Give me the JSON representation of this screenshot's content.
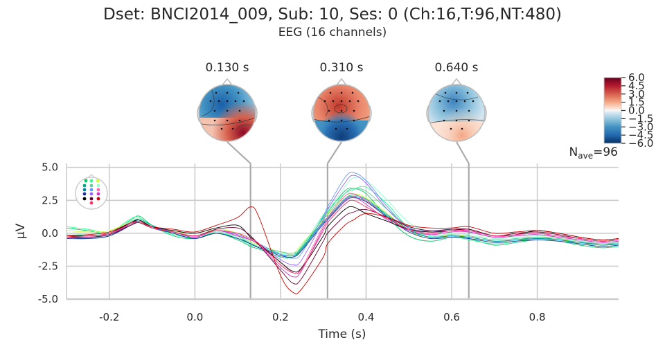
{
  "figure": {
    "title": "Dset: BNCI2014_009, Sub: 10, Ses: 0 (Ch:16,T:96,NT:480)",
    "subtitle": "EEG (16 channels)"
  },
  "colors": {
    "background": "#ffffff",
    "grid": "#cccccc",
    "connector": "#aaaaaa",
    "text": "#262626"
  },
  "chart_data": {
    "type": "line",
    "xlabel": "Time (s)",
    "ylabel": "µV",
    "xlim": [
      -0.3,
      0.99
    ],
    "ylim": [
      -5.0,
      5.3
    ],
    "xticks": [
      "-0.2",
      "0.0",
      "0.2",
      "0.4",
      "0.6",
      "0.8"
    ],
    "xtick_values": [
      -0.2,
      0.0,
      0.2,
      0.4,
      0.6,
      0.8
    ],
    "yticks": [
      "-5.0",
      "-2.5",
      "0.0",
      "2.5",
      "5.0"
    ],
    "ytick_values": [
      -5.0,
      -2.5,
      0.0,
      2.5,
      5.0
    ],
    "grid": true,
    "annotation": {
      "base": "N",
      "sub": "ave",
      "suffix": "=96"
    },
    "topomap_times": [
      0.13,
      0.31,
      0.64
    ],
    "topomap_labels": [
      "0.130 s",
      "0.310 s",
      "0.640 s"
    ],
    "colorbar": {
      "ticks": [
        "6.0",
        "4.5",
        "3.0",
        "1.5",
        "0.0",
        "−1.5",
        "−3.0",
        "−4.5",
        "−6.0"
      ],
      "tick_values": [
        6.0,
        4.5,
        3.0,
        1.5,
        0.0,
        -1.5,
        -3.0,
        -4.5,
        -6.0
      ],
      "range": [
        -6.0,
        6.0
      ],
      "colormap": "RdBu_r"
    },
    "channel_colors": [
      "#00cc66",
      "#33ff99",
      "#ccff33",
      "#00aa88",
      "#66cc99",
      "#99ffcc",
      "#0088aa",
      "#6699ff",
      "#ff66aa",
      "#223399",
      "#9966ff",
      "#cc33cc",
      "#000000",
      "#660033",
      "#cc0000",
      "#ff3366"
    ],
    "x": [
      -0.3,
      -0.25,
      -0.2,
      -0.15,
      -0.13,
      -0.1,
      -0.05,
      0.0,
      0.05,
      0.1,
      0.13,
      0.15,
      0.2,
      0.23,
      0.25,
      0.3,
      0.31,
      0.35,
      0.37,
      0.4,
      0.45,
      0.5,
      0.55,
      0.6,
      0.64,
      0.7,
      0.75,
      0.8,
      0.85,
      0.9,
      0.95,
      0.99
    ],
    "series": [
      {
        "color": "#00cc66",
        "values": [
          0.4,
          0.2,
          0.0,
          1.0,
          1.3,
          0.6,
          -0.2,
          -0.4,
          0.0,
          -0.5,
          -1.0,
          -1.2,
          -1.8,
          -1.8,
          -1.2,
          1.2,
          1.6,
          3.2,
          3.4,
          3.0,
          1.2,
          -0.2,
          -0.6,
          -0.3,
          -0.4,
          -0.9,
          -0.7,
          -0.5,
          -0.6,
          -0.9,
          -1.1,
          -1.0
        ]
      },
      {
        "color": "#33ff99",
        "values": [
          0.5,
          0.3,
          0.1,
          1.1,
          1.2,
          0.5,
          -0.1,
          -0.3,
          0.1,
          -0.4,
          -0.9,
          -1.0,
          -1.6,
          -1.7,
          -1.0,
          1.4,
          1.8,
          3.0,
          3.3,
          3.5,
          2.2,
          0.4,
          -0.2,
          -0.2,
          -0.5,
          -0.8,
          -0.6,
          -0.4,
          -0.5,
          -0.8,
          -1.0,
          -0.9
        ]
      },
      {
        "color": "#ccff33",
        "values": [
          0.2,
          0.1,
          0.2,
          0.9,
          1.0,
          0.4,
          0.2,
          -0.2,
          0.3,
          0.0,
          -0.6,
          -0.9,
          -1.4,
          -1.5,
          -0.8,
          1.0,
          1.5,
          2.8,
          3.0,
          2.7,
          1.5,
          0.2,
          -0.4,
          -0.1,
          -0.3,
          -0.6,
          -0.5,
          -0.3,
          -0.4,
          -0.7,
          -0.9,
          -0.8
        ]
      },
      {
        "color": "#00aa88",
        "values": [
          -0.2,
          -0.3,
          -0.1,
          0.8,
          1.1,
          0.6,
          0.0,
          -0.4,
          0.1,
          -0.3,
          -0.8,
          -1.1,
          -1.5,
          -1.6,
          -1.1,
          0.9,
          1.2,
          2.6,
          2.9,
          2.6,
          1.4,
          0.3,
          -0.3,
          -0.2,
          -0.3,
          -0.6,
          -0.5,
          -0.3,
          -0.5,
          -0.7,
          -0.8,
          -0.8
        ]
      },
      {
        "color": "#66cc99",
        "values": [
          -0.1,
          -0.2,
          0.0,
          0.9,
          1.0,
          0.5,
          0.1,
          -0.3,
          0.2,
          -0.2,
          -0.7,
          -1.0,
          -1.4,
          -1.5,
          -1.0,
          1.1,
          1.4,
          3.0,
          3.4,
          3.2,
          1.8,
          0.5,
          -0.1,
          -0.1,
          -0.2,
          -0.5,
          -0.4,
          -0.3,
          -0.4,
          -0.6,
          -0.8,
          -0.7
        ]
      },
      {
        "color": "#99ffcc",
        "values": [
          0.0,
          -0.1,
          0.1,
          0.9,
          1.1,
          0.5,
          0.0,
          -0.3,
          0.1,
          -0.3,
          -0.7,
          -1.0,
          -1.5,
          -1.6,
          -0.9,
          1.3,
          1.7,
          3.5,
          4.2,
          4.0,
          2.5,
          0.8,
          0.1,
          0.0,
          -0.1,
          -0.4,
          -0.3,
          -0.2,
          -0.3,
          -0.5,
          -0.7,
          -0.6
        ]
      },
      {
        "color": "#0088aa",
        "values": [
          -0.3,
          -0.4,
          -0.2,
          0.7,
          1.0,
          0.5,
          0.0,
          -0.4,
          0.0,
          -0.4,
          -0.8,
          -1.1,
          -1.6,
          -1.7,
          -1.2,
          0.8,
          1.1,
          2.5,
          2.8,
          2.5,
          1.3,
          0.2,
          -0.3,
          -0.2,
          -0.3,
          -0.6,
          -0.5,
          -0.4,
          -0.5,
          -0.7,
          -0.9,
          -0.8
        ]
      },
      {
        "color": "#6699ff",
        "values": [
          -0.2,
          -0.3,
          -0.1,
          0.8,
          1.0,
          0.5,
          0.1,
          -0.2,
          0.2,
          -0.1,
          -0.5,
          -0.8,
          -1.6,
          -1.9,
          -1.5,
          1.3,
          2.0,
          4.2,
          4.6,
          4.0,
          2.0,
          0.4,
          0.2,
          0.3,
          0.1,
          -0.3,
          -0.2,
          -0.1,
          -0.3,
          -0.5,
          -0.7,
          -0.6
        ]
      },
      {
        "color": "#ff66aa",
        "values": [
          -0.3,
          -0.3,
          -0.1,
          0.7,
          0.9,
          0.4,
          0.1,
          -0.3,
          0.2,
          -0.2,
          -0.5,
          -0.9,
          -2.2,
          -3.0,
          -2.6,
          0.6,
          1.2,
          2.8,
          3.0,
          2.5,
          1.2,
          0.3,
          0.0,
          0.2,
          0.2,
          -0.2,
          -0.1,
          0.0,
          -0.2,
          -0.4,
          -0.6,
          -0.5
        ]
      },
      {
        "color": "#223399",
        "values": [
          -0.4,
          -0.4,
          -0.2,
          0.6,
          0.9,
          0.4,
          0.0,
          -0.4,
          0.0,
          -0.4,
          -0.8,
          -1.1,
          -1.7,
          -1.8,
          -1.3,
          0.7,
          1.0,
          2.4,
          2.7,
          2.4,
          1.2,
          0.1,
          -0.4,
          -0.3,
          -0.4,
          -0.7,
          -0.6,
          -0.5,
          -0.6,
          -0.8,
          -1.0,
          -0.9
        ]
      },
      {
        "color": "#9966ff",
        "values": [
          -0.2,
          -0.2,
          0.0,
          0.8,
          1.0,
          0.5,
          0.1,
          -0.2,
          0.2,
          -0.1,
          -0.5,
          -0.8,
          -2.0,
          -2.4,
          -2.0,
          1.0,
          1.8,
          3.8,
          4.4,
          3.8,
          1.8,
          0.4,
          0.1,
          0.3,
          0.2,
          -0.2,
          -0.1,
          0.0,
          -0.2,
          -0.4,
          -0.6,
          -0.5
        ]
      },
      {
        "color": "#cc33cc",
        "values": [
          -0.3,
          -0.3,
          -0.1,
          0.7,
          0.9,
          0.4,
          0.1,
          -0.3,
          0.2,
          -0.2,
          -0.5,
          -0.9,
          -2.6,
          -3.3,
          -2.8,
          0.4,
          1.0,
          2.5,
          2.8,
          2.2,
          1.0,
          0.2,
          -0.1,
          0.1,
          0.1,
          -0.3,
          -0.2,
          -0.1,
          -0.3,
          -0.5,
          -0.7,
          -0.6
        ]
      },
      {
        "color": "#000000",
        "values": [
          -0.2,
          -0.2,
          0.0,
          0.8,
          1.0,
          0.5,
          0.2,
          0.0,
          0.4,
          0.6,
          -0.3,
          -0.8,
          -2.2,
          -2.9,
          -2.6,
          -0.2,
          0.5,
          1.8,
          2.0,
          1.5,
          0.9,
          0.3,
          0.1,
          0.2,
          0.3,
          -0.2,
          -0.1,
          0.2,
          0.0,
          -0.3,
          -0.5,
          -0.4
        ]
      },
      {
        "color": "#660033",
        "values": [
          -0.3,
          -0.3,
          -0.1,
          0.6,
          0.8,
          0.4,
          0.1,
          -0.2,
          0.3,
          0.4,
          -0.2,
          -0.9,
          -2.8,
          -3.8,
          -3.4,
          -0.6,
          0.0,
          1.3,
          1.6,
          1.8,
          1.2,
          0.5,
          0.2,
          0.3,
          0.3,
          -0.2,
          0.0,
          0.1,
          -0.1,
          -0.4,
          -0.6,
          -0.5
        ]
      },
      {
        "color": "#cc0000",
        "values": [
          -0.2,
          -0.1,
          0.1,
          0.8,
          0.9,
          0.5,
          0.3,
          0.1,
          0.6,
          1.2,
          2.0,
          1.2,
          -3.2,
          -4.5,
          -4.2,
          -1.8,
          -0.8,
          0.6,
          1.0,
          1.5,
          1.2,
          0.6,
          0.4,
          0.4,
          0.5,
          0.0,
          0.1,
          0.2,
          0.0,
          -0.3,
          -0.5,
          -0.4
        ]
      },
      {
        "color": "#ff3366",
        "values": [
          -0.3,
          -0.2,
          0.0,
          0.7,
          0.9,
          0.4,
          0.1,
          -0.2,
          0.2,
          0.0,
          -0.4,
          -0.8,
          -2.4,
          -3.0,
          -2.7,
          0.2,
          0.8,
          2.2,
          2.5,
          2.0,
          1.1,
          0.3,
          0.0,
          0.2,
          0.2,
          -0.2,
          -0.1,
          0.0,
          -0.2,
          -0.4,
          -0.6,
          -0.5
        ]
      }
    ]
  }
}
